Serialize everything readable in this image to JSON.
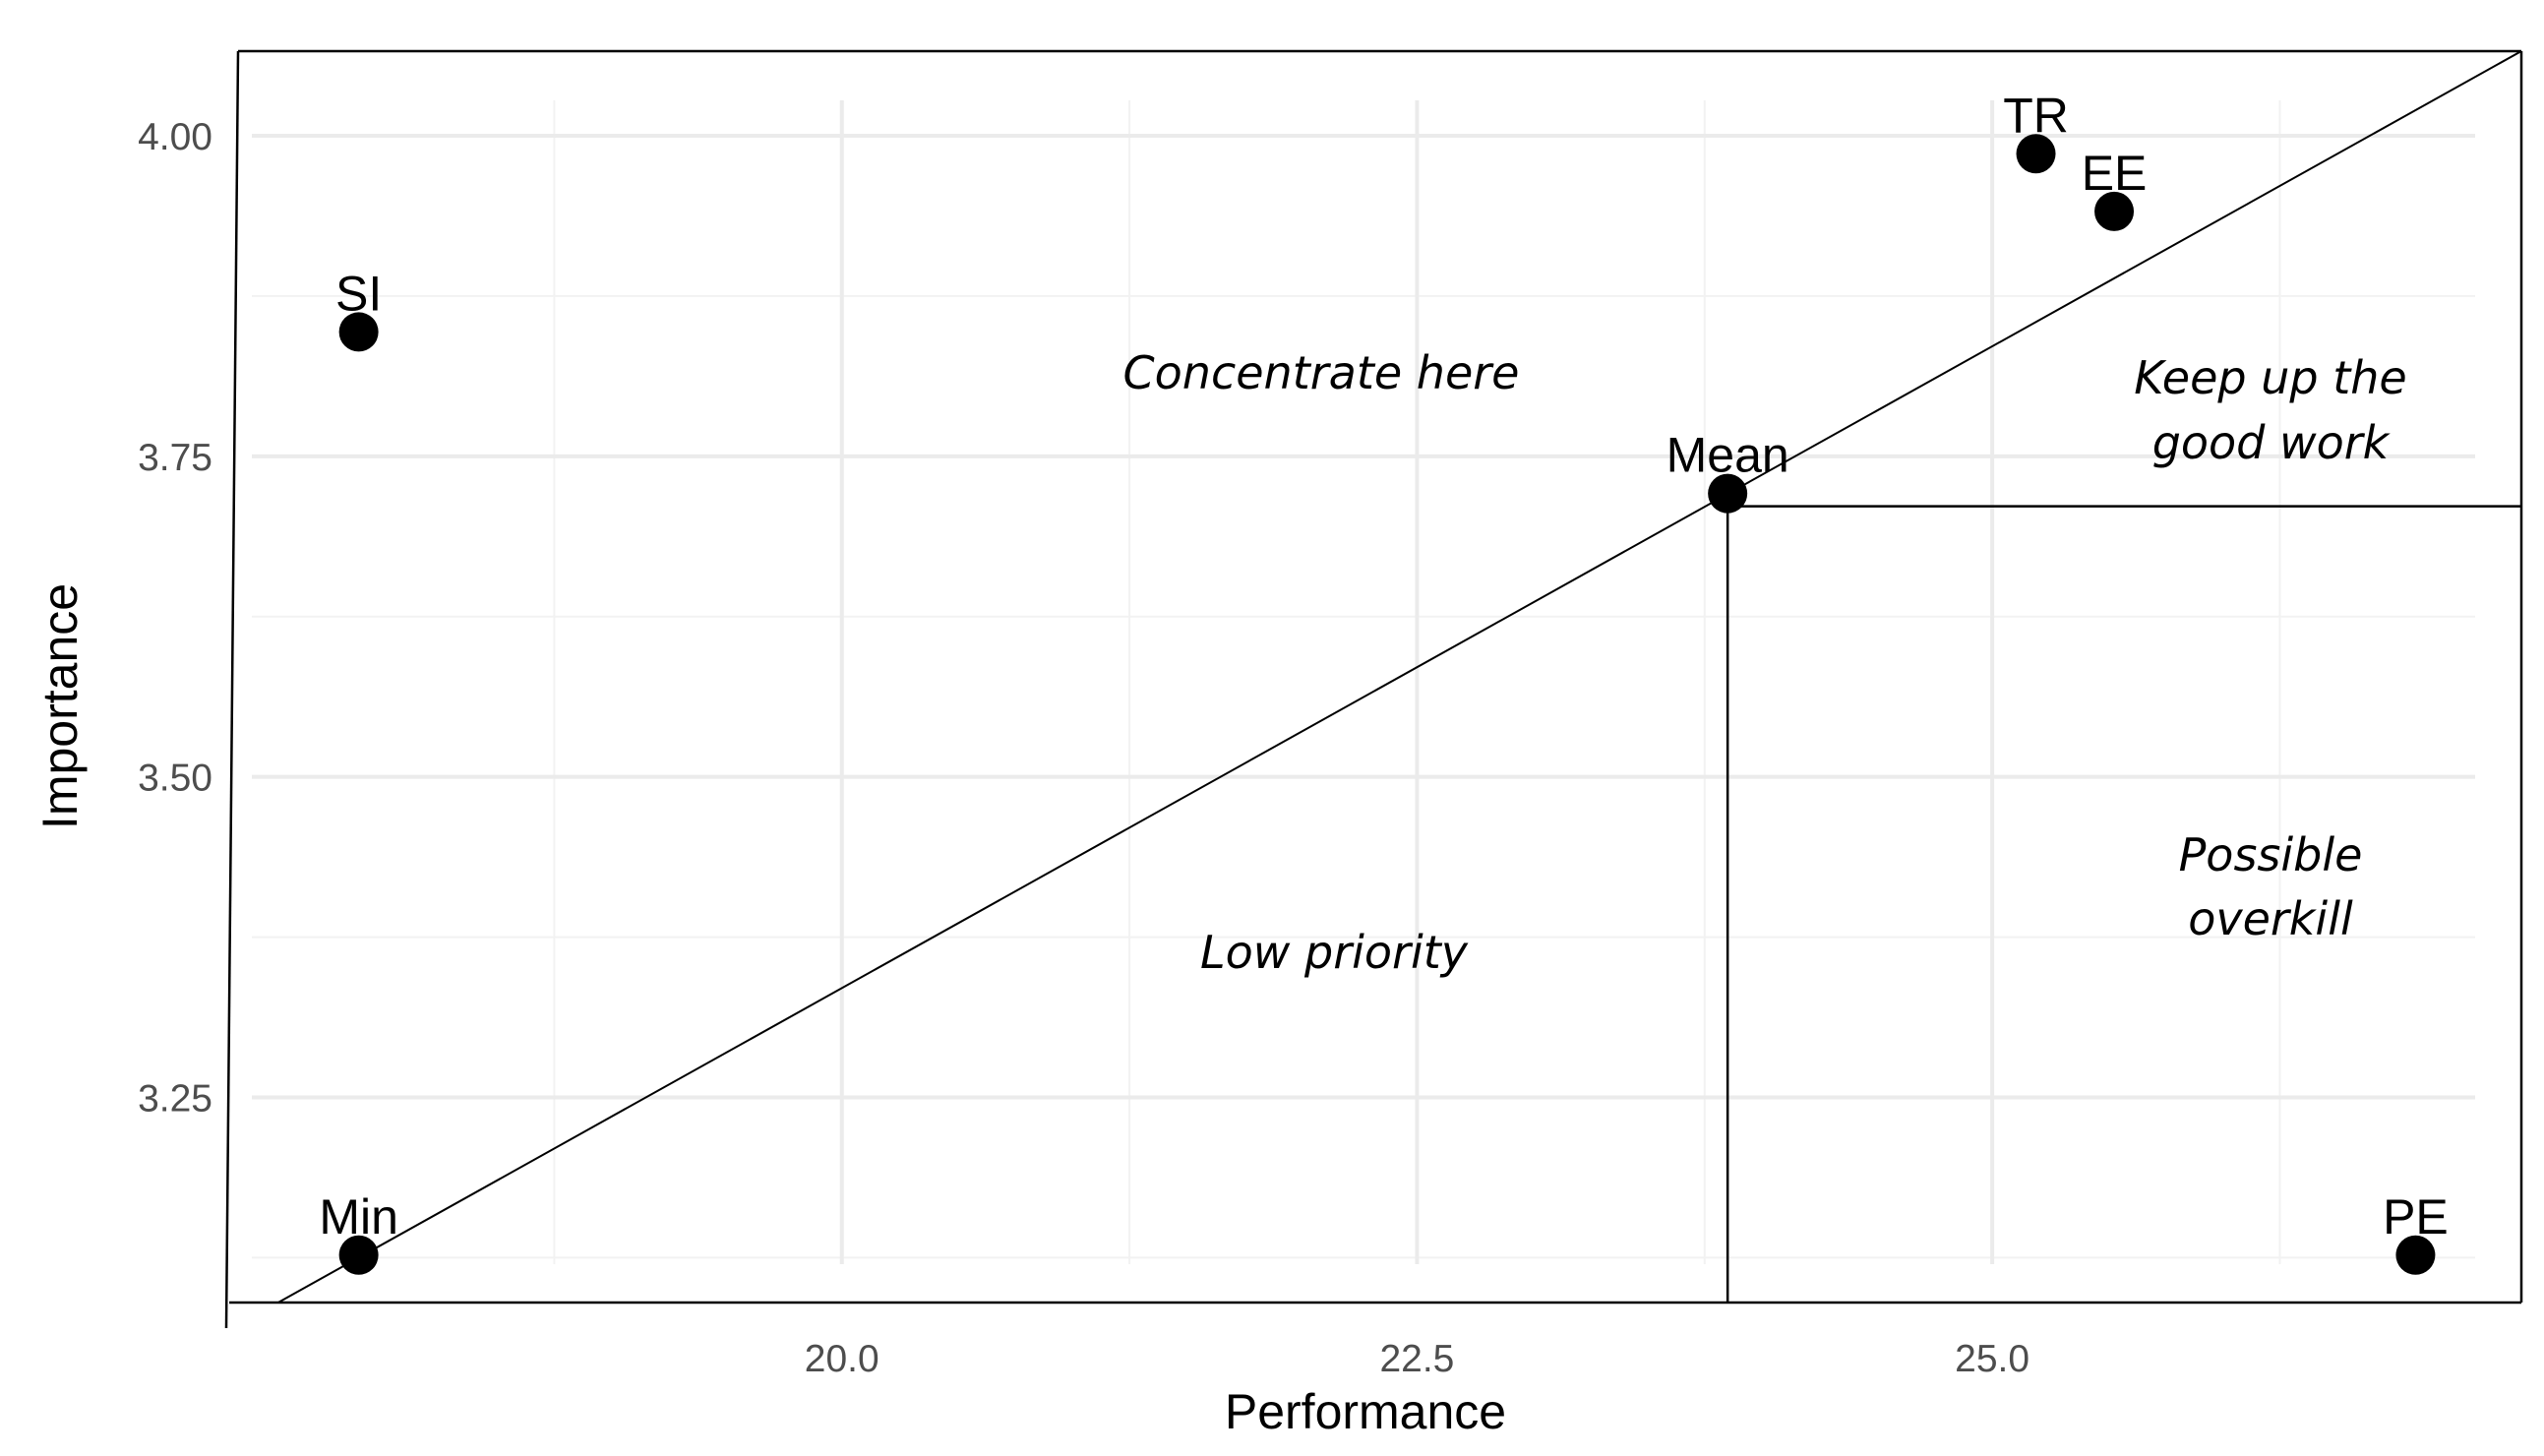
{
  "chart_data": {
    "type": "scatter",
    "xlabel": "Performance",
    "ylabel": "Importance",
    "xlim": [
      17.35,
      27.3
    ],
    "ylim": [
      3.09,
      4.066
    ],
    "x_ticks": [
      {
        "value": 20.0,
        "label": "20.0"
      },
      {
        "value": 22.5,
        "label": "22.5"
      },
      {
        "value": 25.0,
        "label": "25.0"
      }
    ],
    "y_ticks": [
      {
        "value": 3.25,
        "label": "3.25"
      },
      {
        "value": 3.5,
        "label": "3.50"
      },
      {
        "value": 3.75,
        "label": "3.75"
      },
      {
        "value": 4.0,
        "label": "4.00"
      }
    ],
    "grid": true,
    "points": [
      {
        "label": "SI",
        "x": 17.9,
        "y": 3.847
      },
      {
        "label": "Min",
        "x": 17.9,
        "y": 3.127
      },
      {
        "label": "Mean",
        "x": 23.85,
        "y": 3.721
      },
      {
        "label": "TR",
        "x": 25.19,
        "y": 3.986
      },
      {
        "label": "EE",
        "x": 25.53,
        "y": 3.941
      },
      {
        "label": "PE",
        "x": 26.84,
        "y": 3.127
      }
    ],
    "diagonal_line": {
      "from": [
        17.55,
        3.09
      ],
      "to": [
        27.3,
        4.066
      ]
    },
    "quadrant_lines": {
      "x": 23.85,
      "y": 3.711
    },
    "region_labels": {
      "concentrate": "Concentrate here",
      "keep_line1": "Keep up the",
      "keep_line2": "good work",
      "low": "Low priority",
      "overkill_line1": "Possible",
      "overkill_line2": "overkill"
    }
  }
}
